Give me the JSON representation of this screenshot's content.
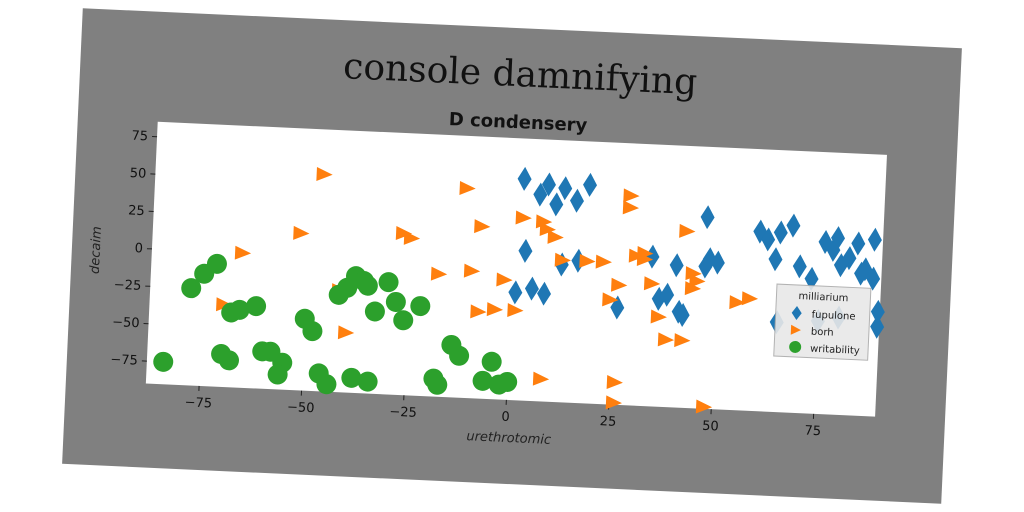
{
  "chart_data": {
    "type": "scatter",
    "suptitle": "console damnifying",
    "title": "D condensery",
    "xlabel": "urethrotomic",
    "ylabel": "decaim",
    "xlim": [
      -88,
      90
    ],
    "ylim": [
      -90,
      85
    ],
    "xticks": [
      -75,
      -50,
      -25,
      0,
      25,
      50,
      75
    ],
    "xtick_labels": [
      "−75",
      "−50",
      "−25",
      "0",
      "25",
      "50",
      "75"
    ],
    "yticks": [
      -75,
      -50,
      -25,
      0,
      25,
      50,
      75
    ],
    "ytick_labels": [
      "−75",
      "−50",
      "−25",
      "0",
      "25",
      "50",
      "75"
    ],
    "grid": false,
    "legend": {
      "title": "milliarium",
      "placement": "right"
    },
    "series": [
      {
        "name": "fupulone",
        "marker": "diamond",
        "color": "#1f77b4",
        "points": [
          [
            2,
            58
          ],
          [
            8,
            55
          ],
          [
            12,
            53
          ],
          [
            18,
            56
          ],
          [
            10,
            42
          ],
          [
            15,
            45
          ],
          [
            6,
            48
          ],
          [
            3,
            10
          ],
          [
            1,
            -18
          ],
          [
            5,
            -15
          ],
          [
            8,
            -18
          ],
          [
            12,
            2
          ],
          [
            16,
            5
          ],
          [
            26,
            -25
          ],
          [
            34,
            10
          ],
          [
            36,
            -18
          ],
          [
            38,
            -15
          ],
          [
            40,
            5
          ],
          [
            41,
            -26
          ],
          [
            42,
            -28
          ],
          [
            47,
            5
          ],
          [
            48,
            10
          ],
          [
            47,
            38
          ],
          [
            50,
            8
          ],
          [
            60,
            30
          ],
          [
            62,
            25
          ],
          [
            64,
            12
          ],
          [
            65,
            30
          ],
          [
            68,
            35
          ],
          [
            70,
            8
          ],
          [
            73,
            0
          ],
          [
            76,
            25
          ],
          [
            78,
            20
          ],
          [
            79,
            28
          ],
          [
            80,
            10
          ],
          [
            82,
            15
          ],
          [
            84,
            25
          ],
          [
            85,
            5
          ],
          [
            86,
            8
          ],
          [
            88,
            28
          ],
          [
            88,
            2
          ],
          [
            65,
            -30
          ],
          [
            75,
            -28
          ],
          [
            80,
            -25
          ],
          [
            90,
            -20
          ],
          [
            92,
            -30
          ]
        ]
      },
      {
        "name": "borh",
        "marker": "triangle-right",
        "color": "#ff7f0e",
        "points": [
          [
            -47,
            55
          ],
          [
            -66,
            0
          ],
          [
            -70,
            -35
          ],
          [
            -52,
            15
          ],
          [
            -27,
            18
          ],
          [
            -25,
            15
          ],
          [
            -18,
            -8
          ],
          [
            -10,
            -5
          ],
          [
            -12,
            50
          ],
          [
            -8,
            25
          ],
          [
            -42,
            -22
          ],
          [
            -40,
            -50
          ],
          [
            -8,
            -32
          ],
          [
            -4,
            -30
          ],
          [
            -2,
            -10
          ],
          [
            1,
            -30
          ],
          [
            2,
            32
          ],
          [
            7,
            30
          ],
          [
            8,
            25
          ],
          [
            10,
            20
          ],
          [
            12,
            5
          ],
          [
            18,
            5
          ],
          [
            22,
            5
          ],
          [
            24,
            -20
          ],
          [
            26,
            -10
          ],
          [
            28,
            42
          ],
          [
            28,
            50
          ],
          [
            30,
            10
          ],
          [
            32,
            8
          ],
          [
            34,
            -8
          ],
          [
            36,
            -30
          ],
          [
            38,
            -45
          ],
          [
            42,
            -45
          ],
          [
            42,
            28
          ],
          [
            44,
            0
          ],
          [
            44,
            -10
          ],
          [
            45,
            -5
          ],
          [
            48,
            -90
          ],
          [
            55,
            -18
          ],
          [
            58,
            -15
          ],
          [
            26,
            -75
          ],
          [
            8,
            -75
          ],
          [
            26,
            -100
          ],
          [
            32,
            12
          ]
        ]
      },
      {
        "name": "writability",
        "marker": "circle",
        "color": "#2ca02c",
        "points": [
          [
            -84,
            -75
          ],
          [
            -78,
            -25
          ],
          [
            -75,
            -15
          ],
          [
            -72,
            -8
          ],
          [
            -68,
            -40
          ],
          [
            -66,
            -38
          ],
          [
            -62,
            -35
          ],
          [
            -58,
            -65
          ],
          [
            -55,
            -72
          ],
          [
            -50,
            -42
          ],
          [
            -48,
            -50
          ],
          [
            -46,
            -78
          ],
          [
            -44,
            -85
          ],
          [
            -42,
            -25
          ],
          [
            -40,
            -20
          ],
          [
            -38,
            -12
          ],
          [
            -36,
            -15
          ],
          [
            -35,
            -18
          ],
          [
            -33,
            -35
          ],
          [
            -30,
            -15
          ],
          [
            -28,
            -28
          ],
          [
            -26,
            -40
          ],
          [
            -22,
            -30
          ],
          [
            -18,
            -78
          ],
          [
            -17,
            -82
          ],
          [
            -14,
            -55
          ],
          [
            -12,
            -62
          ],
          [
            -6,
            -78
          ],
          [
            -4,
            -65
          ],
          [
            -2,
            -80
          ],
          [
            0,
            -78
          ],
          [
            -34,
            -82
          ],
          [
            -38,
            -80
          ],
          [
            -56,
            -80
          ],
          [
            -60,
            -65
          ],
          [
            -68,
            -72
          ],
          [
            -70,
            -68
          ]
        ]
      }
    ]
  }
}
